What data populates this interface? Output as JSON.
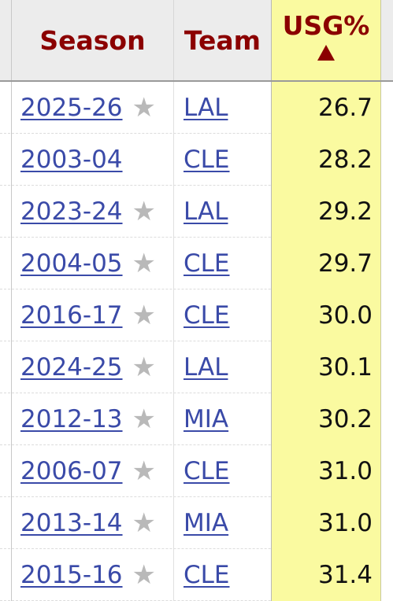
{
  "header": {
    "season": "Season",
    "team": "Team",
    "usg": "USG%"
  },
  "colors": {
    "header_text": "#8b0000",
    "link": "#3a4aa8",
    "sorted_column_bg": "#fafaa0",
    "star": "#b9b9b9"
  },
  "sort": {
    "column": "USG%",
    "direction": "ascending",
    "indicator_icon": "triangle-up-icon"
  },
  "rows": [
    {
      "season": "2025-26",
      "star": true,
      "team": "LAL",
      "usg": "26.7"
    },
    {
      "season": "2003-04",
      "star": false,
      "team": "CLE",
      "usg": "28.2"
    },
    {
      "season": "2023-24",
      "star": true,
      "team": "LAL",
      "usg": "29.2"
    },
    {
      "season": "2004-05",
      "star": true,
      "team": "CLE",
      "usg": "29.7"
    },
    {
      "season": "2016-17",
      "star": true,
      "team": "CLE",
      "usg": "30.0"
    },
    {
      "season": "2024-25",
      "star": true,
      "team": "LAL",
      "usg": "30.1"
    },
    {
      "season": "2012-13",
      "star": true,
      "team": "MIA",
      "usg": "30.2"
    },
    {
      "season": "2006-07",
      "star": true,
      "team": "CLE",
      "usg": "31.0"
    },
    {
      "season": "2013-14",
      "star": true,
      "team": "MIA",
      "usg": "31.0"
    },
    {
      "season": "2015-16",
      "star": true,
      "team": "CLE",
      "usg": "31.4"
    }
  ]
}
